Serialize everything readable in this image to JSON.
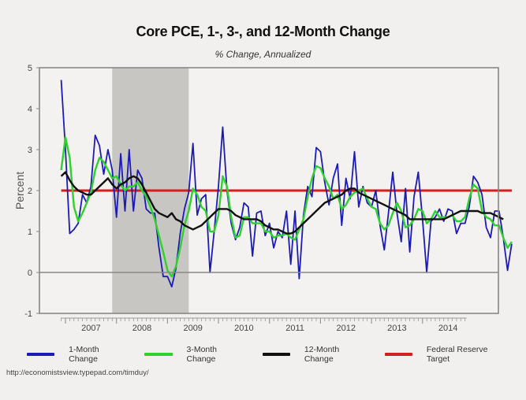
{
  "chart_data": {
    "type": "line",
    "title": "Core PCE, 1-, 3-, and 12-Month Change",
    "subtitle": "% Change, Annualized",
    "xlabel": "",
    "ylabel": "Percent",
    "ylim": [
      -1,
      5
    ],
    "yticks": [
      -1,
      0,
      1,
      2,
      3,
      4,
      5
    ],
    "xrange_months": [
      "2006-12",
      "2014-10"
    ],
    "xtick_labels": [
      "2007",
      "2008",
      "2009",
      "2010",
      "2011",
      "2012",
      "2013",
      "2014"
    ],
    "start_month": "2006-12",
    "recession": {
      "start": "2007-12",
      "end": "2009-06",
      "color": "#c8c6c3"
    },
    "series": [
      {
        "name": "1-Month Change",
        "color": "#1c1cb4",
        "values": [
          4.7,
          3.0,
          0.95,
          1.05,
          1.2,
          1.9,
          1.7,
          2.1,
          3.35,
          3.1,
          2.4,
          3.0,
          2.5,
          1.35,
          2.9,
          1.5,
          3.0,
          1.5,
          2.5,
          2.3,
          1.55,
          1.45,
          1.45,
          0.6,
          -0.1,
          -0.1,
          -0.35,
          0.1,
          0.95,
          1.55,
          1.95,
          3.15,
          1.4,
          1.8,
          1.9,
          0.0,
          1.0,
          2.1,
          3.55,
          2.0,
          1.2,
          0.8,
          1.1,
          1.7,
          1.6,
          0.4,
          1.45,
          1.5,
          0.9,
          1.2,
          0.6,
          1.0,
          0.85,
          1.5,
          0.2,
          1.5,
          -0.15,
          1.4,
          2.1,
          1.85,
          3.05,
          2.95,
          2.2,
          1.65,
          2.3,
          2.65,
          1.15,
          2.3,
          1.8,
          2.95,
          1.6,
          2.1,
          1.7,
          1.6,
          2.0,
          1.15,
          0.55,
          1.45,
          2.45,
          1.45,
          0.75,
          2.05,
          0.5,
          1.85,
          2.45,
          1.3,
          0.0,
          1.25,
          1.35,
          1.55,
          1.25,
          1.55,
          1.5,
          0.95,
          1.2,
          1.2,
          1.6,
          2.35,
          2.2,
          1.9,
          1.1,
          0.85,
          1.5,
          1.5,
          0.85,
          0.05,
          0.7
        ]
      },
      {
        "name": "3-Month Change",
        "color": "#2fd12f",
        "values": [
          2.5,
          3.3,
          2.8,
          1.6,
          1.25,
          1.45,
          1.7,
          1.95,
          2.5,
          2.8,
          2.7,
          2.5,
          2.3,
          2.35,
          2.15,
          2.0,
          2.1,
          2.1,
          2.2,
          2.0,
          1.85,
          1.6,
          1.3,
          0.9,
          0.5,
          0.05,
          -0.1,
          0.15,
          0.6,
          1.15,
          1.5,
          2.05,
          1.9,
          1.6,
          1.5,
          1.0,
          1.0,
          1.4,
          2.35,
          2.1,
          1.35,
          0.85,
          0.9,
          1.35,
          1.35,
          1.2,
          1.2,
          1.2,
          1.0,
          1.0,
          0.85,
          0.9,
          0.9,
          0.95,
          0.85,
          0.8,
          1.05,
          1.3,
          1.85,
          2.3,
          2.6,
          2.55,
          2.3,
          2.1,
          1.8,
          1.9,
          1.55,
          1.65,
          1.85,
          1.95,
          2.0,
          2.05,
          1.8,
          1.6,
          1.55,
          1.2,
          1.05,
          1.15,
          1.45,
          1.7,
          1.5,
          1.1,
          1.15,
          1.3,
          1.55,
          1.5,
          1.2,
          1.3,
          1.5,
          1.35,
          1.35,
          1.35,
          1.4,
          1.25,
          1.25,
          1.35,
          1.8,
          2.15,
          2.05,
          1.5,
          1.35,
          1.3,
          1.15,
          1.15,
          0.85,
          0.6,
          0.75
        ]
      },
      {
        "name": "12-Month Change",
        "color": "#111111",
        "values": [
          2.35,
          2.45,
          2.25,
          2.1,
          2.0,
          1.95,
          1.9,
          1.9,
          2.0,
          2.1,
          2.2,
          2.3,
          2.15,
          2.05,
          2.15,
          2.2,
          2.3,
          2.35,
          2.3,
          2.15,
          1.95,
          1.75,
          1.55,
          1.45,
          1.4,
          1.35,
          1.45,
          1.3,
          1.25,
          1.15,
          1.1,
          1.05,
          1.1,
          1.15,
          1.25,
          1.35,
          1.45,
          1.55,
          1.55,
          1.55,
          1.5,
          1.4,
          1.35,
          1.3,
          1.3,
          1.3,
          1.3,
          1.25,
          1.15,
          1.1,
          1.05,
          1.05,
          1.0,
          0.95,
          0.95,
          1.0,
          1.1,
          1.2,
          1.3,
          1.4,
          1.5,
          1.6,
          1.7,
          1.75,
          1.8,
          1.85,
          1.9,
          2.0,
          2.05,
          2.05,
          1.95,
          1.9,
          1.85,
          1.8,
          1.75,
          1.7,
          1.65,
          1.6,
          1.55,
          1.5,
          1.45,
          1.4,
          1.3,
          1.3,
          1.3,
          1.3,
          1.3,
          1.3,
          1.3,
          1.3,
          1.3,
          1.35,
          1.4,
          1.45,
          1.5,
          1.5,
          1.5,
          1.5,
          1.5,
          1.45,
          1.45,
          1.45,
          1.4,
          1.35,
          1.3
        ]
      },
      {
        "name": "Federal Reserve Target",
        "color": "#d02020",
        "constant": 2.0
      }
    ],
    "legend_position": "bottom"
  },
  "source": "http://economistsview.typepad.com/timduy/"
}
